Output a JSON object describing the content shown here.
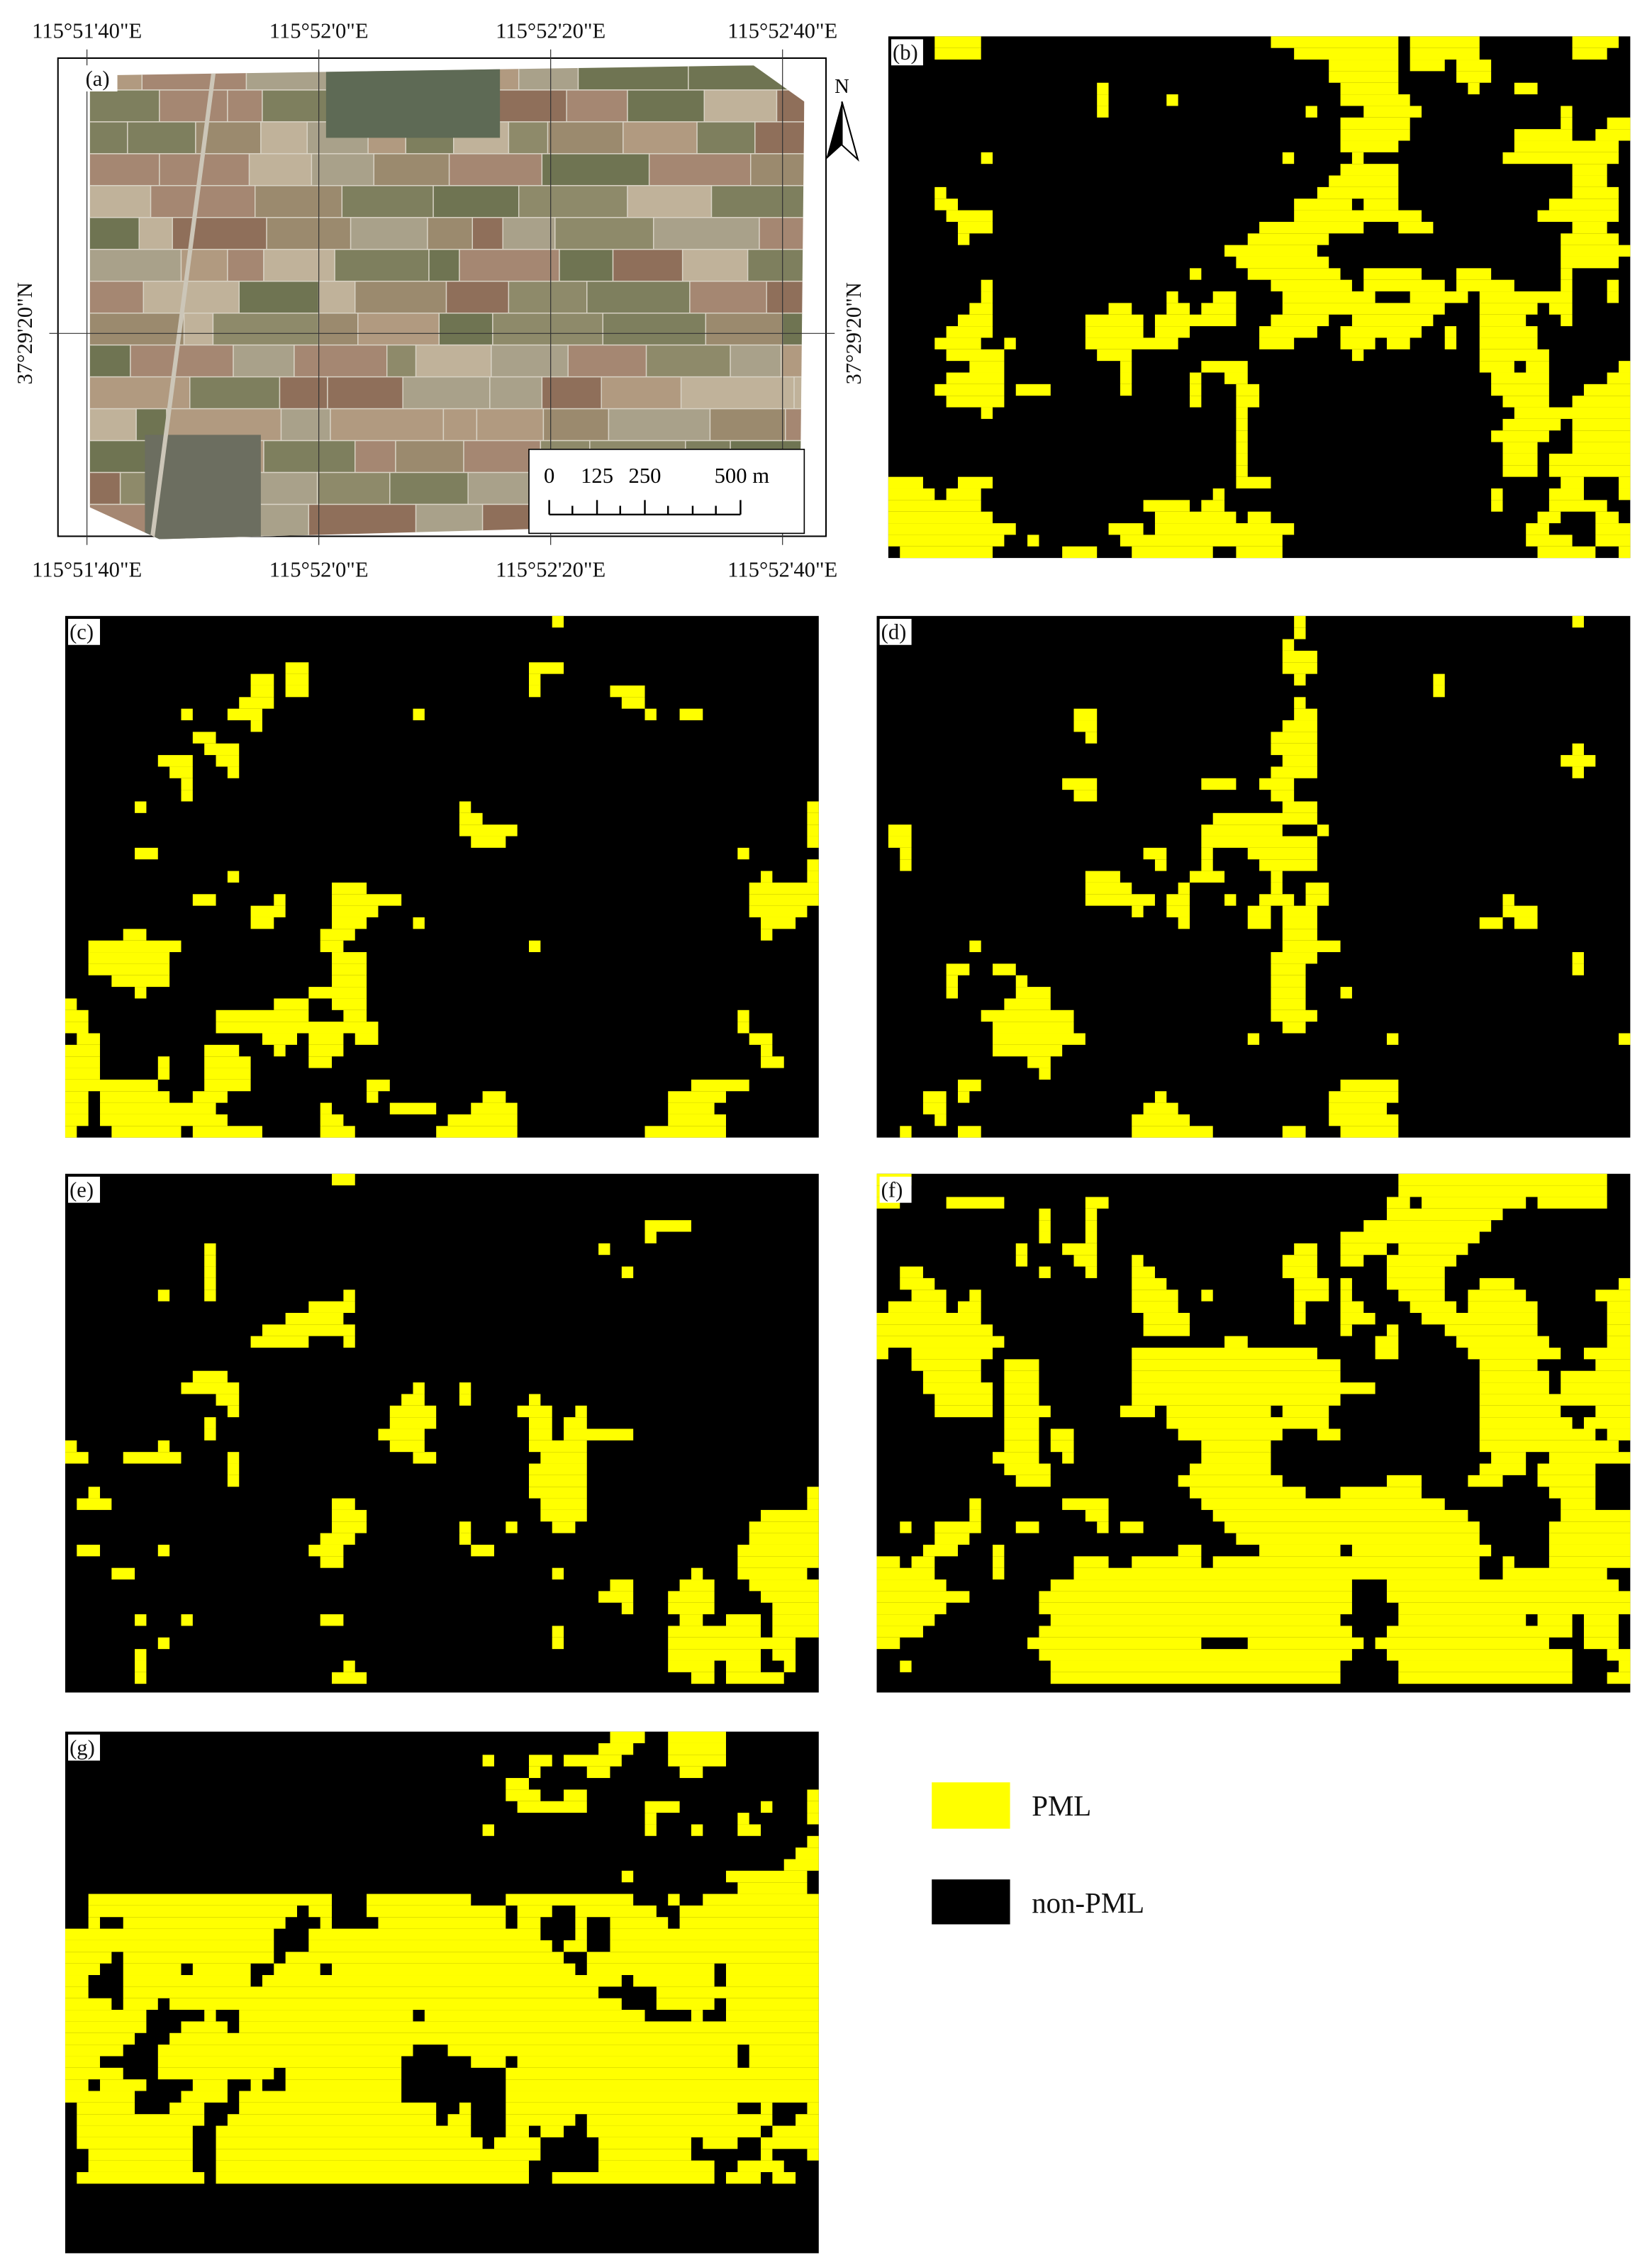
{
  "panels": [
    {
      "label": "(a)"
    },
    {
      "label": "(b)"
    },
    {
      "label": "(c)"
    },
    {
      "label": "(d)"
    },
    {
      "label": "(e)"
    },
    {
      "label": "(f)"
    },
    {
      "label": "(g)"
    }
  ],
  "map_a": {
    "top_longitudes": [
      "115°51'40\"E",
      "115°52'0\"E",
      "115°52'20\"E",
      "115°52'40\"E"
    ],
    "bottom_longitudes": [
      "115°51'40\"E",
      "115°52'0\"E",
      "115°52'20\"E",
      "115°52'40\"E"
    ],
    "left_latitude": "37°29'20\"N",
    "right_latitude": "37°29'20\"N",
    "north": "N",
    "scale_bar": {
      "labels": [
        "0",
        "125",
        "250",
        "500 m"
      ]
    }
  },
  "legend": [
    {
      "label": "PML",
      "color": "#ffff00"
    },
    {
      "label": "non-PML",
      "color": "#000000"
    }
  ]
}
